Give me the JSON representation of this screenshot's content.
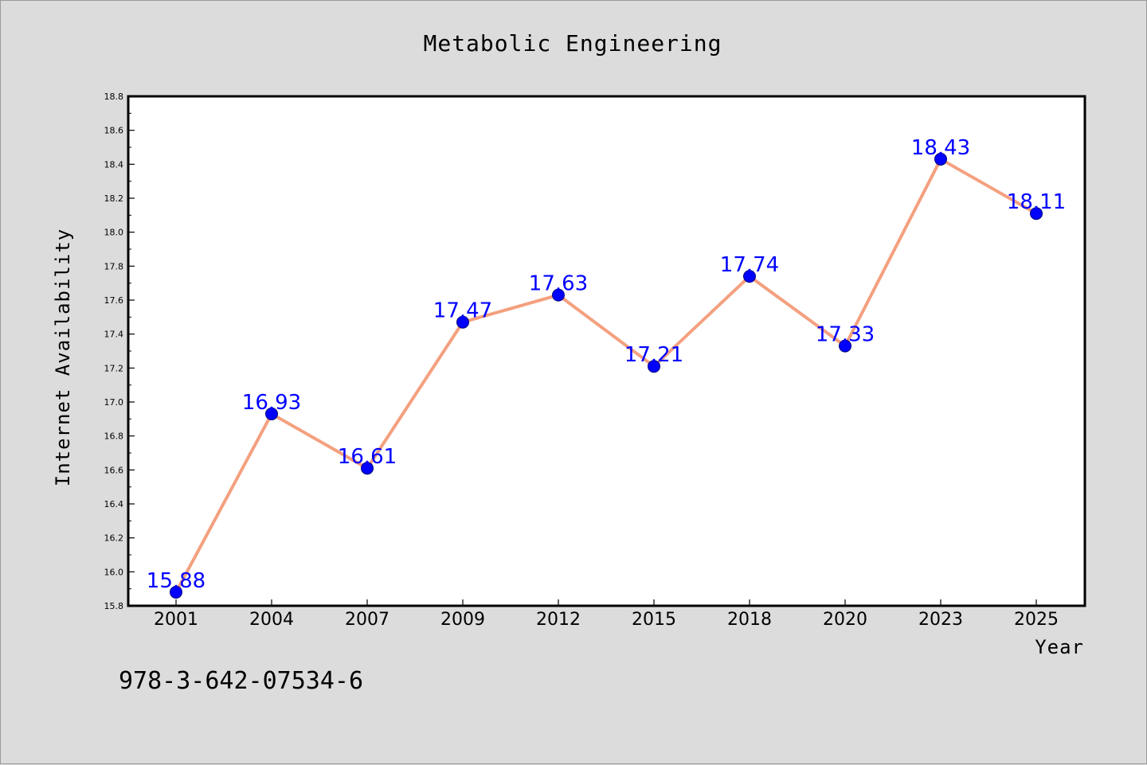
{
  "chart_data": {
    "type": "line",
    "title": "Metabolic Engineering",
    "xlabel": "Year",
    "ylabel": "Internet Availability",
    "categories": [
      "2001",
      "2004",
      "2007",
      "2009",
      "2012",
      "2015",
      "2018",
      "2020",
      "2023",
      "2025"
    ],
    "series": [
      {
        "values": [
          15.88,
          16.93,
          16.61,
          17.47,
          17.63,
          17.21,
          17.74,
          17.33,
          18.43,
          18.11
        ],
        "labels": [
          "15.88",
          "16.93",
          "16.61",
          "17.47",
          "17.63",
          "17.21",
          "17.74",
          "17.33",
          "18.43",
          "18.11"
        ]
      }
    ],
    "ylim": [
      15.8,
      18.8
    ],
    "yticks": [
      "15.8",
      "16.0",
      "16.2",
      "16.4",
      "16.6",
      "16.8",
      "17.0",
      "17.2",
      "17.4",
      "17.6",
      "17.8",
      "18.0",
      "18.2",
      "18.4",
      "18.6",
      "18.8"
    ],
    "grid": false,
    "line_color": "#f4a07f",
    "marker_color": "#0000ff",
    "label_color": "#0000ff"
  },
  "annotation": "978-3-642-07534-6"
}
